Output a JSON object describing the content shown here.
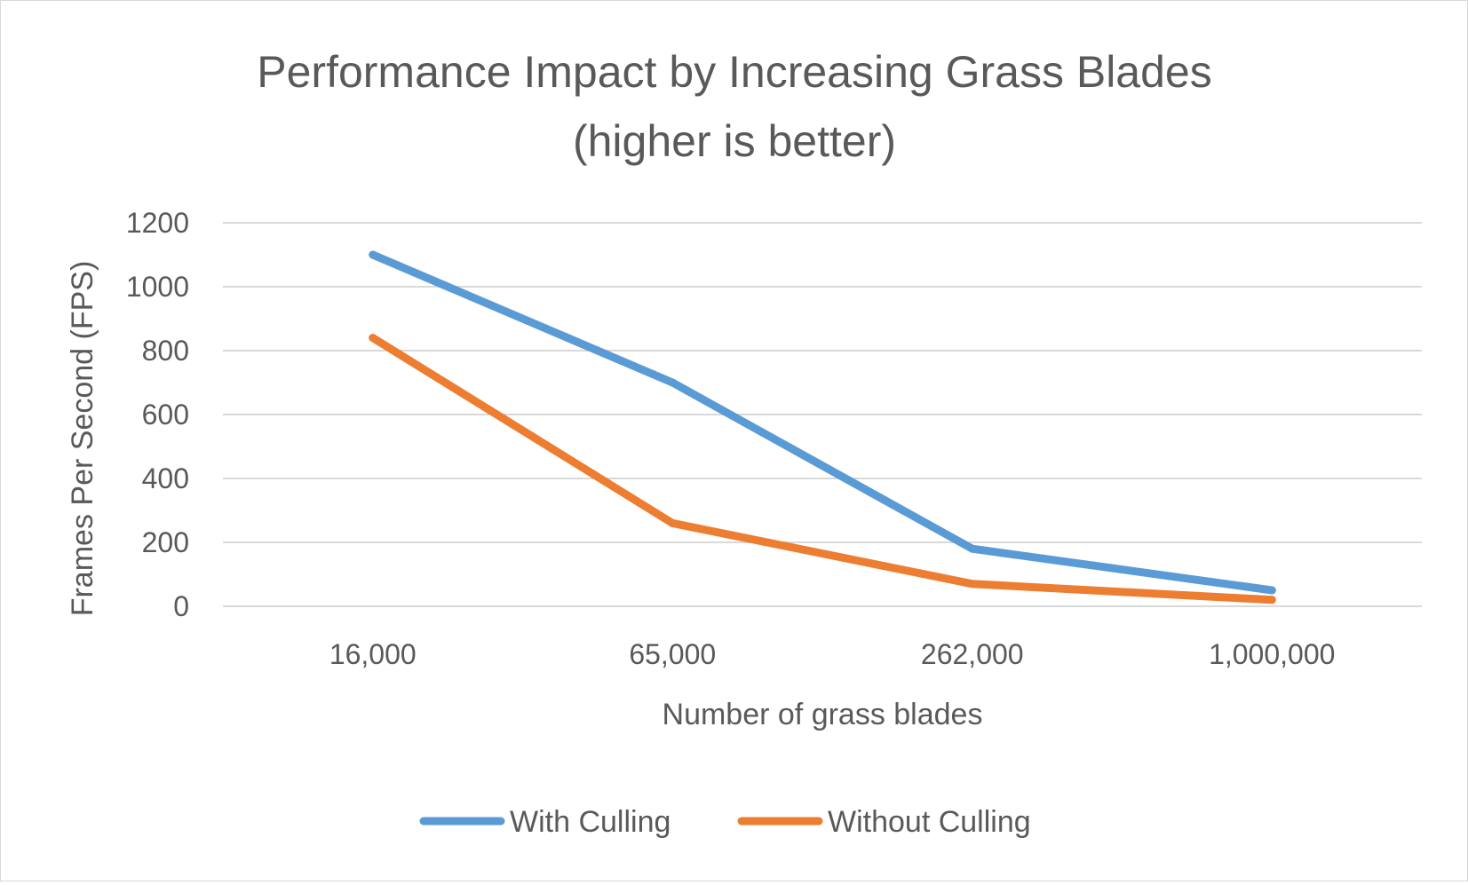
{
  "chart_data": {
    "type": "line",
    "title": "Performance Impact by Increasing Grass Blades (higher is better)",
    "title_lines": [
      "Performance Impact by Increasing Grass Blades",
      "(higher is better)"
    ],
    "xlabel": "Number of grass blades",
    "ylabel": "Frames Per Second (FPS)",
    "categories": [
      "16,000",
      "65,000",
      "262,000",
      "1,000,000"
    ],
    "ylim": [
      0,
      1200
    ],
    "yticks": [
      0,
      200,
      400,
      600,
      800,
      1000,
      1200
    ],
    "grid": true,
    "legend_position": "bottom",
    "series": [
      {
        "name": "With Culling",
        "color": "#5b9bd5",
        "values": [
          1100,
          700,
          180,
          50
        ]
      },
      {
        "name": "Without Culling",
        "color": "#ed7d31",
        "values": [
          840,
          260,
          70,
          20
        ]
      }
    ]
  }
}
